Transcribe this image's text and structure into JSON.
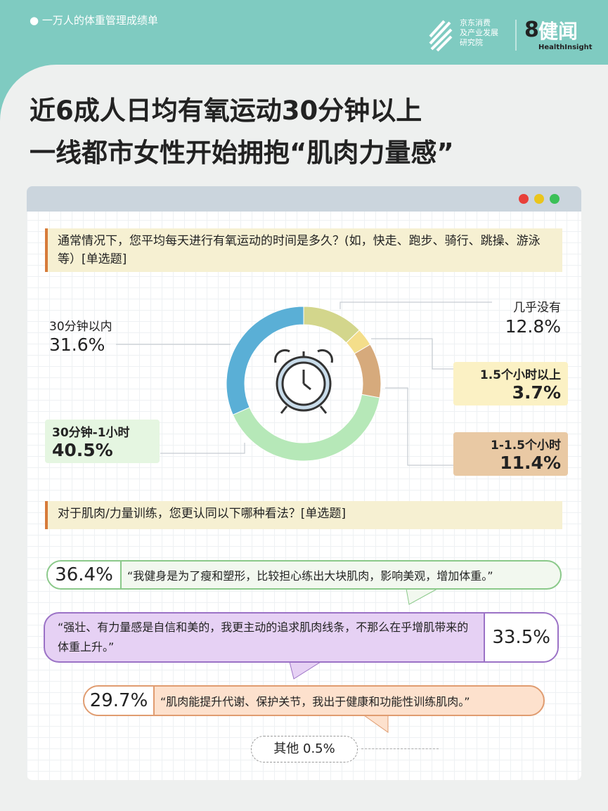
{
  "header": {
    "tag": "一万人的体重管理成绩单",
    "logo_lines": [
      "京东消费",
      "及产业发展",
      "研究院"
    ],
    "brand": "健闻",
    "brand_en": "HealthInsight"
  },
  "title": [
    "近6成人日均有氧运动30分钟以上",
    "一线都市女性开始拥抱“肌肉力量感”"
  ],
  "chart_data": {
    "type": "pie",
    "donut": true,
    "question": "通常情况下，您平均每天进行有氧运动的时间是多久？(如，快走、跑步、骑行、跳操、游泳等）[单选题]",
    "categories": [
      "几乎没有",
      "1.5个小时以上",
      "1-1.5个小时",
      "30分钟-1小时",
      "30分钟以内"
    ],
    "values": [
      12.8,
      3.7,
      11.4,
      40.5,
      31.6
    ],
    "value_labels": [
      "12.8%",
      "3.7%",
      "11.4%",
      "40.5%",
      "31.6%"
    ],
    "colors": [
      "#d3d68c",
      "#f4de8a",
      "#d6aa7c",
      "#b6e8b8",
      "#5aafd6"
    ]
  },
  "opinion": {
    "question": "对于肌肉/力量训练，您更认同以下哪种看法？[单选题]",
    "items": [
      {
        "pct": "36.4%",
        "text": "“我健身是为了瘦和塑形，比较担心练出大块肌肉，影响美观，增加体重。”"
      },
      {
        "pct": "33.5%",
        "text": "“强壮、有力量感是自信和美的，我更主动的追求肌肉线条，不那么在乎增肌带来的体重上升。”"
      },
      {
        "pct": "29.7%",
        "text": "“肌肉能提升代谢、保护关节，我出于健康和功能性训练肌肉。”"
      }
    ],
    "other": "其他 0.5%"
  }
}
